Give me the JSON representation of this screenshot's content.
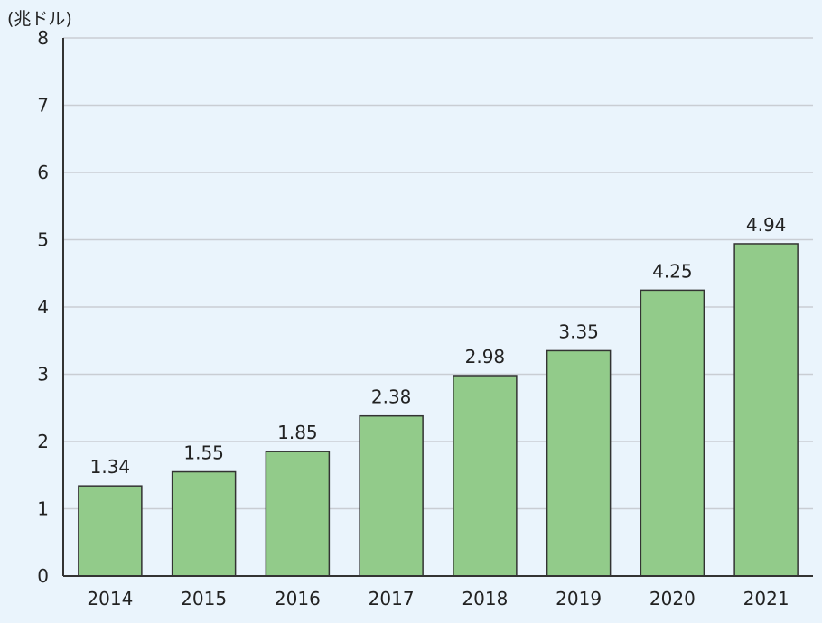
{
  "chart_data": {
    "type": "bar",
    "unit_label": "(兆ドル)",
    "categories": [
      "2014",
      "2015",
      "2016",
      "2017",
      "2018",
      "2019",
      "2020",
      "2021"
    ],
    "values": [
      1.34,
      1.55,
      1.85,
      2.38,
      2.98,
      3.35,
      4.25,
      4.94
    ],
    "value_labels": [
      "1.34",
      "1.55",
      "1.85",
      "2.38",
      "2.98",
      "3.35",
      "4.25",
      "4.94"
    ],
    "y_ticks": [
      "0",
      "1",
      "2",
      "3",
      "4",
      "5",
      "6",
      "7",
      "8"
    ],
    "ylim": [
      0,
      8
    ],
    "grid": true,
    "legend": "none",
    "colors": {
      "bar_fill": "#92cb8a",
      "bar_stroke": "#333333",
      "grid": "#c9cdd3",
      "axis": "#333333",
      "background": "#eaf4fc"
    }
  }
}
